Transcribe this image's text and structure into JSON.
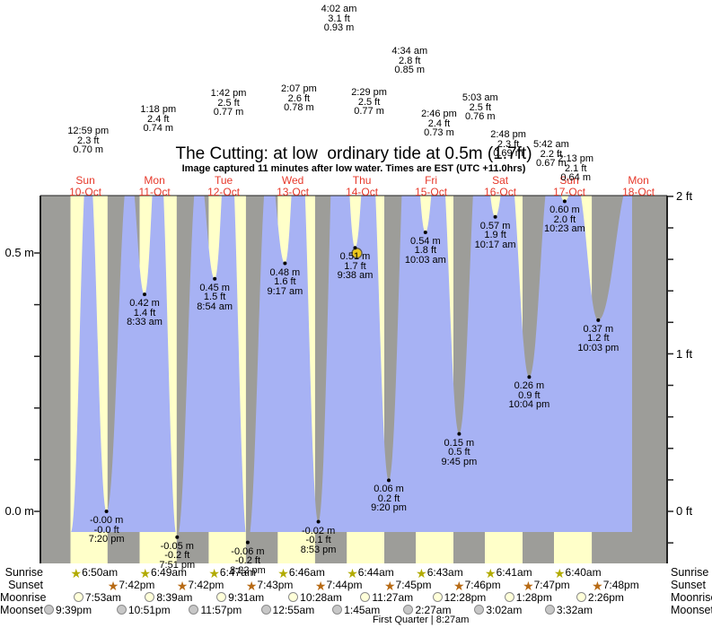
{
  "colors": {
    "red": "#e6382a",
    "blue": "#a7b2f4",
    "day_yellow": "#ffffc9",
    "night_gray": "#9d9d99",
    "axis": "#222222",
    "marker_yellow": "#edc71e",
    "sunrise_star": "#b2ab00",
    "sunset_star": "#b76a14",
    "moonrise_fill": "#ffffd9",
    "moonset_fill": "#c7c7c7",
    "circle_border": "#8b8b8b"
  },
  "chart_data": {
    "type": "area",
    "title": "The Cutting: at low  ordinary tide at 0.5m (1.7ft)",
    "subtitle": "Image captured 11 minutes after low water. Times are EST (UTC +11.0hrs)",
    "ylabel_left_unit": "m",
    "ylabel_right_unit": "ft",
    "y_axis_left": {
      "ticks": [
        "0.5 m",
        "0.0 m"
      ],
      "tick_values_m": [
        0.5,
        0.0
      ]
    },
    "y_axis_right": {
      "ticks": [
        "2 ft",
        "1 ft",
        "0 ft"
      ],
      "tick_values_ft": [
        2,
        1,
        0
      ]
    },
    "x_axis": {
      "days": [
        {
          "name": "Sun",
          "date": "10-Oct"
        },
        {
          "name": "Mon",
          "date": "11-Oct"
        },
        {
          "name": "Tue",
          "date": "12-Oct"
        },
        {
          "name": "Wed",
          "date": "13-Oct"
        },
        {
          "name": "Thu",
          "date": "14-Oct"
        },
        {
          "name": "Fri",
          "date": "15-Oct"
        },
        {
          "name": "Sat",
          "date": "16-Oct"
        },
        {
          "name": "Sun",
          "date": "17-Oct"
        },
        {
          "name": "Mon",
          "date": "18-Oct"
        }
      ]
    },
    "high_tides": [
      {
        "day": 0,
        "time": "12:59 pm",
        "ft": "2.3 ft",
        "m": "0.70 m"
      },
      {
        "day": 1,
        "time": "1:18 pm",
        "ft": "2.4 ft",
        "m": "0.74 m"
      },
      {
        "day": 2,
        "time": "1:42 pm",
        "ft": "2.5 ft",
        "m": "0.77 m"
      },
      {
        "day": 3,
        "time": "2:07 pm",
        "ft": "2.6 ft",
        "m": "0.78 m"
      },
      {
        "day": 4,
        "time": "4:02 am",
        "ft": "3.1 ft",
        "m": "0.93 m"
      },
      {
        "day": 4,
        "time": "2:29 pm",
        "ft": "2.5 ft",
        "m": "0.77 m"
      },
      {
        "day": 5,
        "time": "4:34 am",
        "ft": "2.8 ft",
        "m": "0.85 m"
      },
      {
        "day": 5,
        "time": "2:46 pm",
        "ft": "2.4 ft",
        "m": "0.73 m"
      },
      {
        "day": 6,
        "time": "5:03 am",
        "ft": "2.5 ft",
        "m": "0.76 m"
      },
      {
        "day": 6,
        "time": "2:48 pm",
        "ft": "2.3 ft",
        "m": "0.69 m"
      },
      {
        "day": 7,
        "time": "5:42 am",
        "ft": "2.2 ft",
        "m": "0.67 m"
      },
      {
        "day": 7,
        "time": "2:13 pm",
        "ft": "2.1 ft",
        "m": "0.64 m"
      }
    ],
    "low_tides": [
      {
        "day": 0,
        "time": "7:20 pm",
        "m": "-0.00 m",
        "ft": "-0.0 ft",
        "current": false
      },
      {
        "day": 1,
        "time": "8:33 am",
        "m": "0.42 m",
        "ft": "1.4 ft",
        "current": false
      },
      {
        "day": 1,
        "time": "7:51 pm",
        "m": "-0.05 m",
        "ft": "-0.2 ft",
        "current": false
      },
      {
        "day": 2,
        "time": "8:54 am",
        "m": "0.45 m",
        "ft": "1.5 ft",
        "current": false
      },
      {
        "day": 2,
        "time": "8:22 pm",
        "m": "-0.06 m",
        "ft": "-0.2 ft",
        "current": false
      },
      {
        "day": 3,
        "time": "9:17 am",
        "m": "0.48 m",
        "ft": "1.6 ft",
        "current": false
      },
      {
        "day": 3,
        "time": "8:53 pm",
        "m": "-0.02 m",
        "ft": "-0.1 ft",
        "current": false
      },
      {
        "day": 4,
        "time": "9:38 am",
        "m": "0.51 m",
        "ft": "1.7 ft",
        "current": true
      },
      {
        "day": 4,
        "time": "9:20 pm",
        "m": "0.06 m",
        "ft": "0.2 ft",
        "current": false
      },
      {
        "day": 5,
        "time": "10:03 am",
        "m": "0.54 m",
        "ft": "1.8 ft",
        "current": false
      },
      {
        "day": 5,
        "time": "9:45 pm",
        "m": "0.15 m",
        "ft": "0.5 ft",
        "current": false
      },
      {
        "day": 6,
        "time": "10:17 am",
        "m": "0.57 m",
        "ft": "1.9 ft",
        "current": false
      },
      {
        "day": 6,
        "time": "10:04 pm",
        "m": "0.26 m",
        "ft": "0.9 ft",
        "current": false
      },
      {
        "day": 7,
        "time": "10:23 am",
        "m": "0.60 m",
        "ft": "2.0 ft",
        "current": false
      },
      {
        "day": 7,
        "time": "10:03 pm",
        "m": "0.37 m",
        "ft": "1.2 ft",
        "current": false
      }
    ]
  },
  "astro": {
    "rows": [
      {
        "label": "Sunrise",
        "icon": "sunrise-star",
        "events": [
          {
            "day": 0,
            "time": "6:50am"
          },
          {
            "day": 1,
            "time": "6:49am"
          },
          {
            "day": 2,
            "time": "6:47am"
          },
          {
            "day": 3,
            "time": "6:46am"
          },
          {
            "day": 4,
            "time": "6:44am"
          },
          {
            "day": 5,
            "time": "6:43am"
          },
          {
            "day": 6,
            "time": "6:41am"
          },
          {
            "day": 7,
            "time": "6:40am"
          }
        ]
      },
      {
        "label": "Sunset",
        "icon": "sunset-star",
        "events": [
          {
            "day": 0,
            "time": "7:42pm"
          },
          {
            "day": 1,
            "time": "7:42pm"
          },
          {
            "day": 2,
            "time": "7:43pm"
          },
          {
            "day": 3,
            "time": "7:44pm"
          },
          {
            "day": 4,
            "time": "7:45pm"
          },
          {
            "day": 5,
            "time": "7:46pm"
          },
          {
            "day": 6,
            "time": "7:47pm"
          },
          {
            "day": 7,
            "time": "7:48pm"
          }
        ]
      },
      {
        "label": "Moonrise",
        "icon": "moonrise-circle",
        "events": [
          {
            "day": 0,
            "time": "7:53am"
          },
          {
            "day": 1,
            "time": "8:39am"
          },
          {
            "day": 2,
            "time": "9:31am"
          },
          {
            "day": 3,
            "time": "10:28am"
          },
          {
            "day": 4,
            "time": "11:27am"
          },
          {
            "day": 5,
            "time": "12:28pm"
          },
          {
            "day": 6,
            "time": "1:28pm"
          },
          {
            "day": 7,
            "time": "2:26pm"
          }
        ]
      },
      {
        "label": "Moonset",
        "icon": "moonset-circle",
        "events": [
          {
            "day": -1,
            "time": "9:39pm"
          },
          {
            "day": 0,
            "time": "10:51pm"
          },
          {
            "day": 1,
            "time": "11:57pm"
          },
          {
            "day": 3,
            "time": "12:55am"
          },
          {
            "day": 4,
            "time": "1:45am"
          },
          {
            "day": 5,
            "time": "2:27am"
          },
          {
            "day": 6,
            "time": "3:02am"
          },
          {
            "day": 7,
            "time": "3:32am"
          }
        ]
      }
    ],
    "moon_phase": "First Quarter | 8:27am"
  }
}
